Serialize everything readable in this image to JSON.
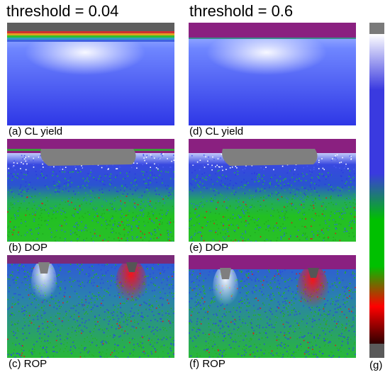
{
  "titles": {
    "left": "threshold = 0.04",
    "right": "threshold = 0.6"
  },
  "panels": [
    {
      "id": "a",
      "label": "(a) CL yield",
      "kind": "cl",
      "threshold": 0.04
    },
    {
      "id": "d",
      "label": "(d) CL yield",
      "kind": "cl",
      "threshold": 0.6
    },
    {
      "id": "b",
      "label": "(b) DOP",
      "kind": "dop",
      "threshold": 0.04
    },
    {
      "id": "e",
      "label": "(e) DOP",
      "kind": "dop",
      "threshold": 0.6
    },
    {
      "id": "c",
      "label": "(c) ROP",
      "kind": "rop",
      "threshold": 0.04
    },
    {
      "id": "f",
      "label": "(f) ROP",
      "kind": "rop",
      "threshold": 0.6
    }
  ],
  "colorbar": {
    "label": "(g)",
    "colors": [
      "#7a7a7a",
      "#ffffff",
      "#3a3ae0",
      "#00c000",
      "#ff0000",
      "#300000",
      "#5a5a5a"
    ]
  },
  "colors": {
    "masked_gray": "#7f7f7f",
    "masked_purple": "#8a2080",
    "blue": "#2b3fe8",
    "green": "#22c022",
    "red": "#e01818"
  }
}
